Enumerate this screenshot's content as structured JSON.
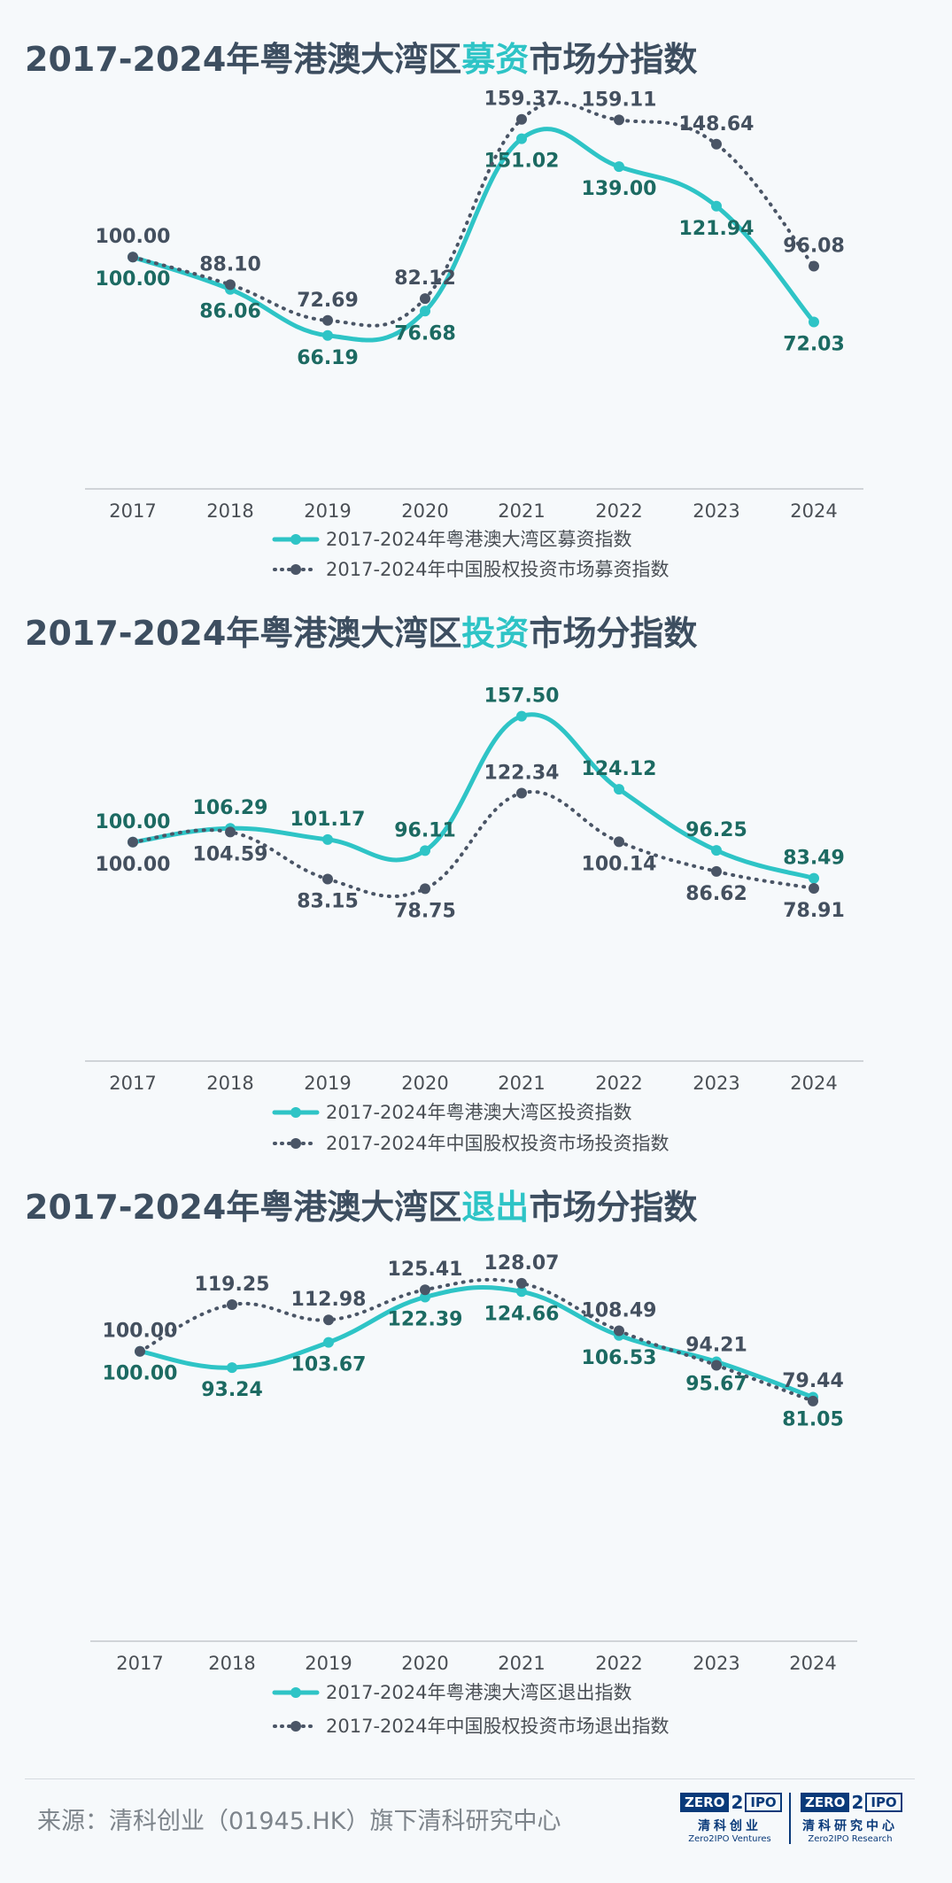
{
  "titles": [
    {
      "pre": "2017-2024年粤港澳大湾区",
      "hl": "募资",
      "post": "市场分指数"
    },
    {
      "pre": "2017-2024年粤港澳大湾区",
      "hl": "投资",
      "post": "市场分指数"
    },
    {
      "pre": "2017-2024年粤港澳大湾区",
      "hl": "退出",
      "post": "市场分指数"
    }
  ],
  "colors": {
    "gba": "#2ec4c6",
    "cn": "#4a5566",
    "axis": "#d0d4d8"
  },
  "chart_data": [
    {
      "type": "line",
      "title": "2017-2024年粤港澳大湾区募资市场分指数",
      "categories": [
        "2017",
        "2018",
        "2019",
        "2020",
        "2021",
        "2022",
        "2023",
        "2024"
      ],
      "series": [
        {
          "name": "2017-2024年粤港澳大湾区募资指数",
          "values": [
            100.0,
            86.06,
            66.19,
            76.68,
            151.02,
            139.0,
            121.94,
            72.03
          ],
          "labels": [
            "100.00",
            "86.06",
            "66.19",
            "76.68",
            "151.02",
            "139.00",
            "121.94",
            "72.03"
          ]
        },
        {
          "name": "2017-2024年中国股权投资市场募资指数",
          "values": [
            100.0,
            88.1,
            72.69,
            82.12,
            159.37,
            159.11,
            148.64,
            96.08
          ],
          "labels": [
            "100.00",
            "88.10",
            "72.69",
            "82.12",
            "159.37",
            "159.11",
            "148.64",
            "96.08"
          ]
        }
      ],
      "legend_position": "bottom"
    },
    {
      "type": "line",
      "title": "2017-2024年粤港澳大湾区投资市场分指数",
      "categories": [
        "2017",
        "2018",
        "2019",
        "2020",
        "2021",
        "2022",
        "2023",
        "2024"
      ],
      "series": [
        {
          "name": "2017-2024年粤港澳大湾区投资指数",
          "values": [
            100.0,
            106.29,
            101.17,
            96.11,
            157.5,
            124.12,
            96.25,
            83.49
          ],
          "labels": [
            "100.00",
            "106.29",
            "101.17",
            "96.11",
            "157.50",
            "124.12",
            "96.25",
            "83.49"
          ]
        },
        {
          "name": "2017-2024年中国股权投资市场投资指数",
          "values": [
            100.0,
            104.59,
            83.15,
            78.75,
            122.34,
            100.14,
            86.62,
            78.91
          ],
          "labels": [
            "100.00",
            "104.59",
            "83.15",
            "78.75",
            "122.34",
            "100.14",
            "86.62",
            "78.91"
          ]
        }
      ],
      "legend_position": "bottom"
    },
    {
      "type": "line",
      "title": "2017-2024年粤港澳大湾区退出市场分指数",
      "categories": [
        "2017",
        "2018",
        "2019",
        "2020",
        "2021",
        "2022",
        "2023",
        "2024"
      ],
      "series": [
        {
          "name": "2017-2024年粤港澳大湾区退出指数",
          "values": [
            100.0,
            93.24,
            103.67,
            122.39,
            124.66,
            106.53,
            95.67,
            81.05
          ],
          "labels": [
            "100.00",
            "93.24",
            "103.67",
            "122.39",
            "124.66",
            "106.53",
            "95.67",
            "81.05"
          ]
        },
        {
          "name": "2017-2024年中国股权投资市场退出指数",
          "values": [
            100.0,
            119.25,
            112.98,
            125.41,
            128.07,
            108.49,
            94.21,
            79.44
          ],
          "labels": [
            "100.00",
            "119.25",
            "112.98",
            "125.41",
            "128.07",
            "108.49",
            "94.21",
            "79.44"
          ]
        }
      ],
      "legend_position": "bottom"
    }
  ],
  "footer": {
    "source": "来源：清科创业（01945.HK）旗下清科研究中心",
    "logos": [
      {
        "mark": "ZERO",
        "two": "2",
        "ipo": "IPO",
        "cn": "清科创业",
        "en": "Zero2IPO Ventures"
      },
      {
        "mark": "ZERO",
        "two": "2",
        "ipo": "IPO",
        "cn": "清科研究中心",
        "en": "Zero2IPO Research"
      }
    ]
  }
}
